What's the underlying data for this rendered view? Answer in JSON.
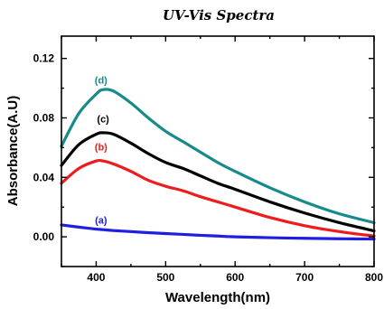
{
  "chart_data": {
    "type": "line",
    "title": "UV-Vis Spectra",
    "xlabel": "Wavelength(nm)",
    "ylabel": "Absorbance(A.U)",
    "xlim": [
      350,
      800
    ],
    "ylim": [
      -0.02,
      0.135
    ],
    "xticks": [
      400,
      500,
      600,
      700,
      800
    ],
    "xtick_labels": [
      "400",
      "500",
      "600",
      "700",
      "800"
    ],
    "yticks": [
      0.0,
      0.04,
      0.08,
      0.12
    ],
    "ytick_labels": [
      "0.00",
      "0.04",
      "0.08",
      "0.12"
    ],
    "grid": false,
    "legend": "inline labels",
    "x": [
      350,
      375,
      400,
      410,
      425,
      450,
      475,
      500,
      525,
      550,
      575,
      600,
      650,
      700,
      750,
      800
    ],
    "series": [
      {
        "name": "(a)",
        "color": "#1f1fe0",
        "values": [
          0.008,
          0.0065,
          0.0052,
          0.0048,
          0.0042,
          0.0035,
          0.0028,
          0.0022,
          0.0016,
          0.001,
          0.0005,
          0.0,
          -0.0006,
          -0.001,
          -0.0013,
          -0.0015
        ],
        "label_position": [
          407,
          0.009
        ]
      },
      {
        "name": "(b)",
        "color": "#ee1c1c",
        "values": [
          0.036,
          0.046,
          0.051,
          0.051,
          0.049,
          0.044,
          0.038,
          0.034,
          0.031,
          0.027,
          0.0235,
          0.02,
          0.013,
          0.0075,
          0.0035,
          0.0005
        ],
        "label_position": [
          407,
          0.058
        ]
      },
      {
        "name": "(c)",
        "color": "#000000",
        "values": [
          0.048,
          0.062,
          0.069,
          0.07,
          0.069,
          0.063,
          0.056,
          0.05,
          0.046,
          0.041,
          0.036,
          0.032,
          0.0235,
          0.016,
          0.0095,
          0.004
        ],
        "label_position": [
          410,
          0.077
        ]
      },
      {
        "name": "(d)",
        "color": "#178a8a",
        "values": [
          0.061,
          0.083,
          0.096,
          0.099,
          0.098,
          0.09,
          0.08,
          0.071,
          0.064,
          0.057,
          0.05,
          0.044,
          0.033,
          0.0235,
          0.0155,
          0.0095
        ],
        "label_position": [
          407,
          0.103
        ]
      }
    ]
  }
}
